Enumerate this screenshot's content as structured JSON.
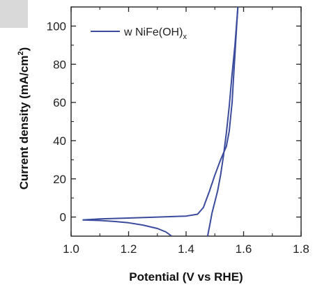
{
  "chart_data": {
    "type": "line",
    "xlabel": "Potential (V vs RHE)",
    "ylabel": "Current density (mA/cm²)",
    "ylabel_main": "Current density (mA/cm",
    "ylabel_sup": "2",
    "ylabel_end": ")",
    "xlim": [
      1.0,
      1.8
    ],
    "ylim": [
      -10,
      110
    ],
    "xticks": [
      1.0,
      1.2,
      1.4,
      1.6,
      1.8
    ],
    "xtick_labels": [
      "1.0",
      "1.2",
      "1.4",
      "1.6",
      "1.8"
    ],
    "yticks": [
      0,
      20,
      40,
      60,
      80,
      100
    ],
    "ytick_labels": [
      "0",
      "20",
      "40",
      "60",
      "80",
      "100"
    ],
    "grid": false,
    "legend_position": "top-left",
    "series": [
      {
        "name": "w NiFe(OH)",
        "name_main": "w NiFe(OH)",
        "name_sub": "x",
        "color": "#3a4a9c",
        "forward": {
          "x": [
            1.04,
            1.1,
            1.2,
            1.3,
            1.4,
            1.44,
            1.46,
            1.48,
            1.5,
            1.52,
            1.54,
            1.55,
            1.56,
            1.565,
            1.57,
            1.575,
            1.58
          ],
          "y": [
            -1.5,
            -1.0,
            -0.5,
            0.0,
            0.5,
            1.5,
            5.0,
            13.0,
            22.0,
            30.0,
            37.0,
            45.0,
            60.0,
            73.0,
            85.0,
            98.0,
            110.0
          ]
        },
        "reverse": {
          "x": [
            1.58,
            1.575,
            1.57,
            1.56,
            1.55,
            1.54,
            1.53,
            1.52,
            1.51,
            1.5,
            1.49,
            1.485,
            1.48,
            1.475
          ],
          "y": [
            110.0,
            100.0,
            90.0,
            75.0,
            58.0,
            44.0,
            32.0,
            22.0,
            14.0,
            8.0,
            2.0,
            -2.0,
            -6.0,
            -10.0
          ]
        },
        "cathodic_tail": {
          "x": [
            1.04,
            1.1,
            1.15,
            1.2,
            1.25,
            1.3,
            1.33,
            1.35
          ],
          "y": [
            -1.5,
            -1.8,
            -2.3,
            -3.0,
            -4.2,
            -6.0,
            -7.8,
            -10.0
          ]
        }
      }
    ]
  }
}
